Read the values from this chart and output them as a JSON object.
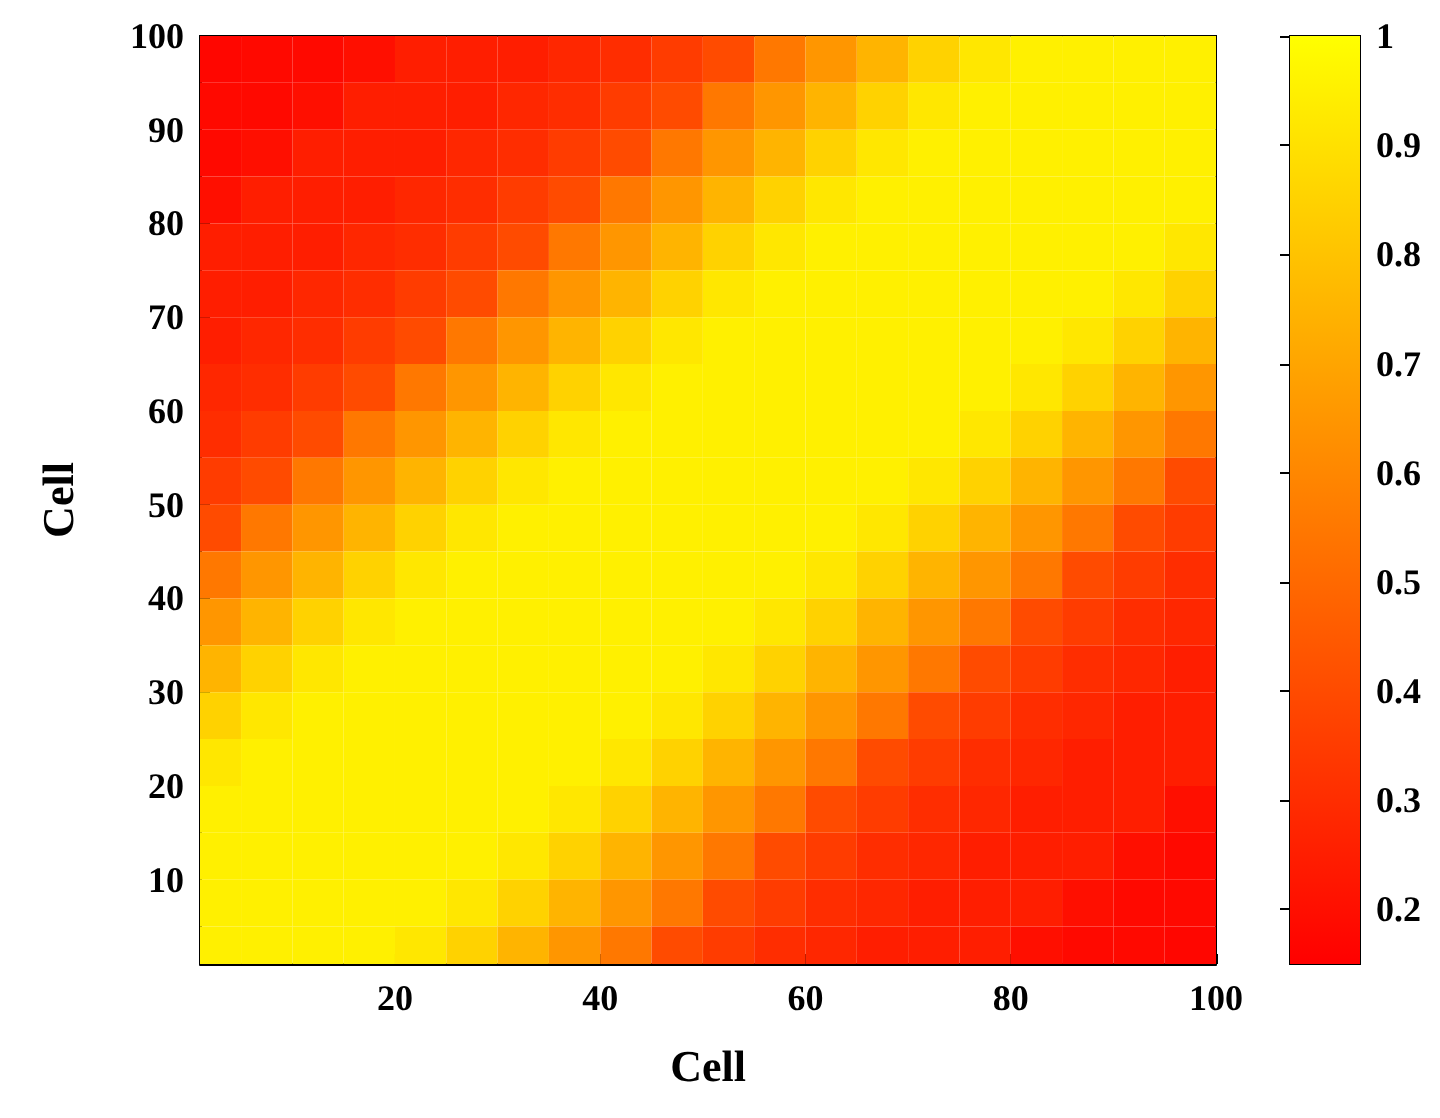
{
  "chart_data": {
    "type": "heatmap",
    "xlabel": "Cell",
    "ylabel": "Cell",
    "x": [
      2.5,
      7.5,
      12.5,
      17.5,
      22.5,
      27.5,
      32.5,
      37.5,
      42.5,
      47.5,
      52.5,
      57.5,
      62.5,
      67.5,
      72.5,
      77.5,
      82.5,
      87.5,
      92.5,
      97.5
    ],
    "y": [
      97.5,
      92.5,
      87.5,
      82.5,
      77.5,
      72.5,
      67.5,
      62.5,
      57.5,
      52.5,
      47.5,
      42.5,
      37.5,
      32.5,
      27.5,
      22.5,
      17.5,
      12.5,
      7.5,
      2.5
    ],
    "xlim": [
      1,
      100
    ],
    "xticks": [
      20,
      40,
      60,
      80,
      100
    ],
    "ylim": [
      1,
      100
    ],
    "yticks": [
      10,
      20,
      30,
      40,
      50,
      60,
      70,
      80,
      90,
      100
    ],
    "clim": [
      0.15,
      1
    ],
    "cticks": [
      0.2,
      0.3,
      0.4,
      0.5,
      0.6,
      0.7,
      0.8,
      0.9,
      1
    ],
    "colors": [
      "#ff0000",
      "#ffff00"
    ],
    "cells": [
      [
        0.17,
        0.18,
        0.18,
        0.2,
        0.25,
        0.25,
        0.25,
        0.28,
        0.3,
        0.35,
        0.4,
        0.55,
        0.65,
        0.75,
        0.85,
        0.92,
        0.95,
        0.95,
        0.95,
        0.95
      ],
      [
        0.18,
        0.18,
        0.2,
        0.25,
        0.25,
        0.25,
        0.28,
        0.3,
        0.35,
        0.4,
        0.55,
        0.65,
        0.75,
        0.85,
        0.92,
        0.95,
        0.95,
        0.95,
        0.95,
        0.95
      ],
      [
        0.18,
        0.2,
        0.25,
        0.25,
        0.25,
        0.28,
        0.3,
        0.35,
        0.4,
        0.55,
        0.65,
        0.75,
        0.85,
        0.92,
        0.95,
        0.95,
        0.95,
        0.95,
        0.95,
        0.95
      ],
      [
        0.2,
        0.25,
        0.25,
        0.25,
        0.28,
        0.3,
        0.35,
        0.4,
        0.55,
        0.65,
        0.75,
        0.85,
        0.92,
        0.95,
        0.95,
        0.95,
        0.95,
        0.95,
        0.95,
        0.95
      ],
      [
        0.25,
        0.25,
        0.25,
        0.28,
        0.3,
        0.35,
        0.4,
        0.55,
        0.65,
        0.75,
        0.85,
        0.92,
        0.95,
        0.95,
        0.95,
        0.95,
        0.95,
        0.95,
        0.95,
        0.92
      ],
      [
        0.25,
        0.25,
        0.28,
        0.3,
        0.35,
        0.4,
        0.55,
        0.65,
        0.75,
        0.85,
        0.92,
        0.95,
        0.95,
        0.95,
        0.95,
        0.95,
        0.95,
        0.95,
        0.92,
        0.85
      ],
      [
        0.25,
        0.28,
        0.3,
        0.35,
        0.4,
        0.55,
        0.65,
        0.75,
        0.85,
        0.92,
        0.95,
        0.95,
        0.95,
        0.95,
        0.95,
        0.95,
        0.95,
        0.92,
        0.85,
        0.75
      ],
      [
        0.28,
        0.3,
        0.35,
        0.4,
        0.55,
        0.65,
        0.75,
        0.85,
        0.92,
        0.95,
        0.95,
        0.95,
        0.95,
        0.95,
        0.95,
        0.95,
        0.92,
        0.85,
        0.75,
        0.65
      ],
      [
        0.3,
        0.35,
        0.4,
        0.55,
        0.65,
        0.75,
        0.85,
        0.92,
        0.95,
        0.95,
        0.95,
        0.95,
        0.95,
        0.95,
        0.95,
        0.92,
        0.85,
        0.75,
        0.65,
        0.55
      ],
      [
        0.35,
        0.4,
        0.55,
        0.65,
        0.75,
        0.85,
        0.92,
        0.95,
        0.95,
        0.95,
        0.95,
        0.95,
        0.95,
        0.95,
        0.92,
        0.85,
        0.75,
        0.65,
        0.55,
        0.4
      ],
      [
        0.4,
        0.55,
        0.65,
        0.75,
        0.85,
        0.92,
        0.95,
        0.95,
        0.95,
        0.95,
        0.95,
        0.95,
        0.95,
        0.92,
        0.85,
        0.75,
        0.65,
        0.55,
        0.4,
        0.35
      ],
      [
        0.55,
        0.65,
        0.75,
        0.85,
        0.92,
        0.95,
        0.95,
        0.95,
        0.95,
        0.95,
        0.95,
        0.95,
        0.92,
        0.85,
        0.75,
        0.65,
        0.55,
        0.4,
        0.35,
        0.3
      ],
      [
        0.65,
        0.75,
        0.85,
        0.92,
        0.95,
        0.95,
        0.95,
        0.95,
        0.95,
        0.95,
        0.95,
        0.92,
        0.85,
        0.75,
        0.65,
        0.55,
        0.4,
        0.35,
        0.3,
        0.28
      ],
      [
        0.75,
        0.85,
        0.92,
        0.95,
        0.95,
        0.95,
        0.95,
        0.95,
        0.95,
        0.95,
        0.92,
        0.85,
        0.75,
        0.65,
        0.55,
        0.4,
        0.35,
        0.3,
        0.28,
        0.25
      ],
      [
        0.85,
        0.92,
        0.95,
        0.95,
        0.95,
        0.95,
        0.95,
        0.95,
        0.95,
        0.92,
        0.85,
        0.75,
        0.65,
        0.55,
        0.4,
        0.35,
        0.3,
        0.28,
        0.25,
        0.25
      ],
      [
        0.92,
        0.95,
        0.95,
        0.95,
        0.95,
        0.95,
        0.95,
        0.95,
        0.92,
        0.85,
        0.75,
        0.65,
        0.55,
        0.4,
        0.35,
        0.3,
        0.28,
        0.25,
        0.25,
        0.25
      ],
      [
        0.95,
        0.95,
        0.95,
        0.95,
        0.95,
        0.95,
        0.95,
        0.92,
        0.85,
        0.75,
        0.65,
        0.55,
        0.4,
        0.35,
        0.3,
        0.28,
        0.25,
        0.25,
        0.25,
        0.2
      ],
      [
        0.95,
        0.95,
        0.95,
        0.95,
        0.95,
        0.95,
        0.92,
        0.85,
        0.75,
        0.65,
        0.55,
        0.4,
        0.35,
        0.3,
        0.28,
        0.25,
        0.25,
        0.25,
        0.2,
        0.18
      ],
      [
        0.95,
        0.95,
        0.95,
        0.95,
        0.95,
        0.92,
        0.85,
        0.75,
        0.65,
        0.55,
        0.4,
        0.35,
        0.3,
        0.28,
        0.25,
        0.25,
        0.25,
        0.2,
        0.18,
        0.18
      ],
      [
        0.95,
        0.95,
        0.95,
        0.95,
        0.92,
        0.85,
        0.75,
        0.65,
        0.55,
        0.4,
        0.35,
        0.3,
        0.28,
        0.25,
        0.25,
        0.25,
        0.2,
        0.18,
        0.18,
        0.17
      ]
    ]
  }
}
